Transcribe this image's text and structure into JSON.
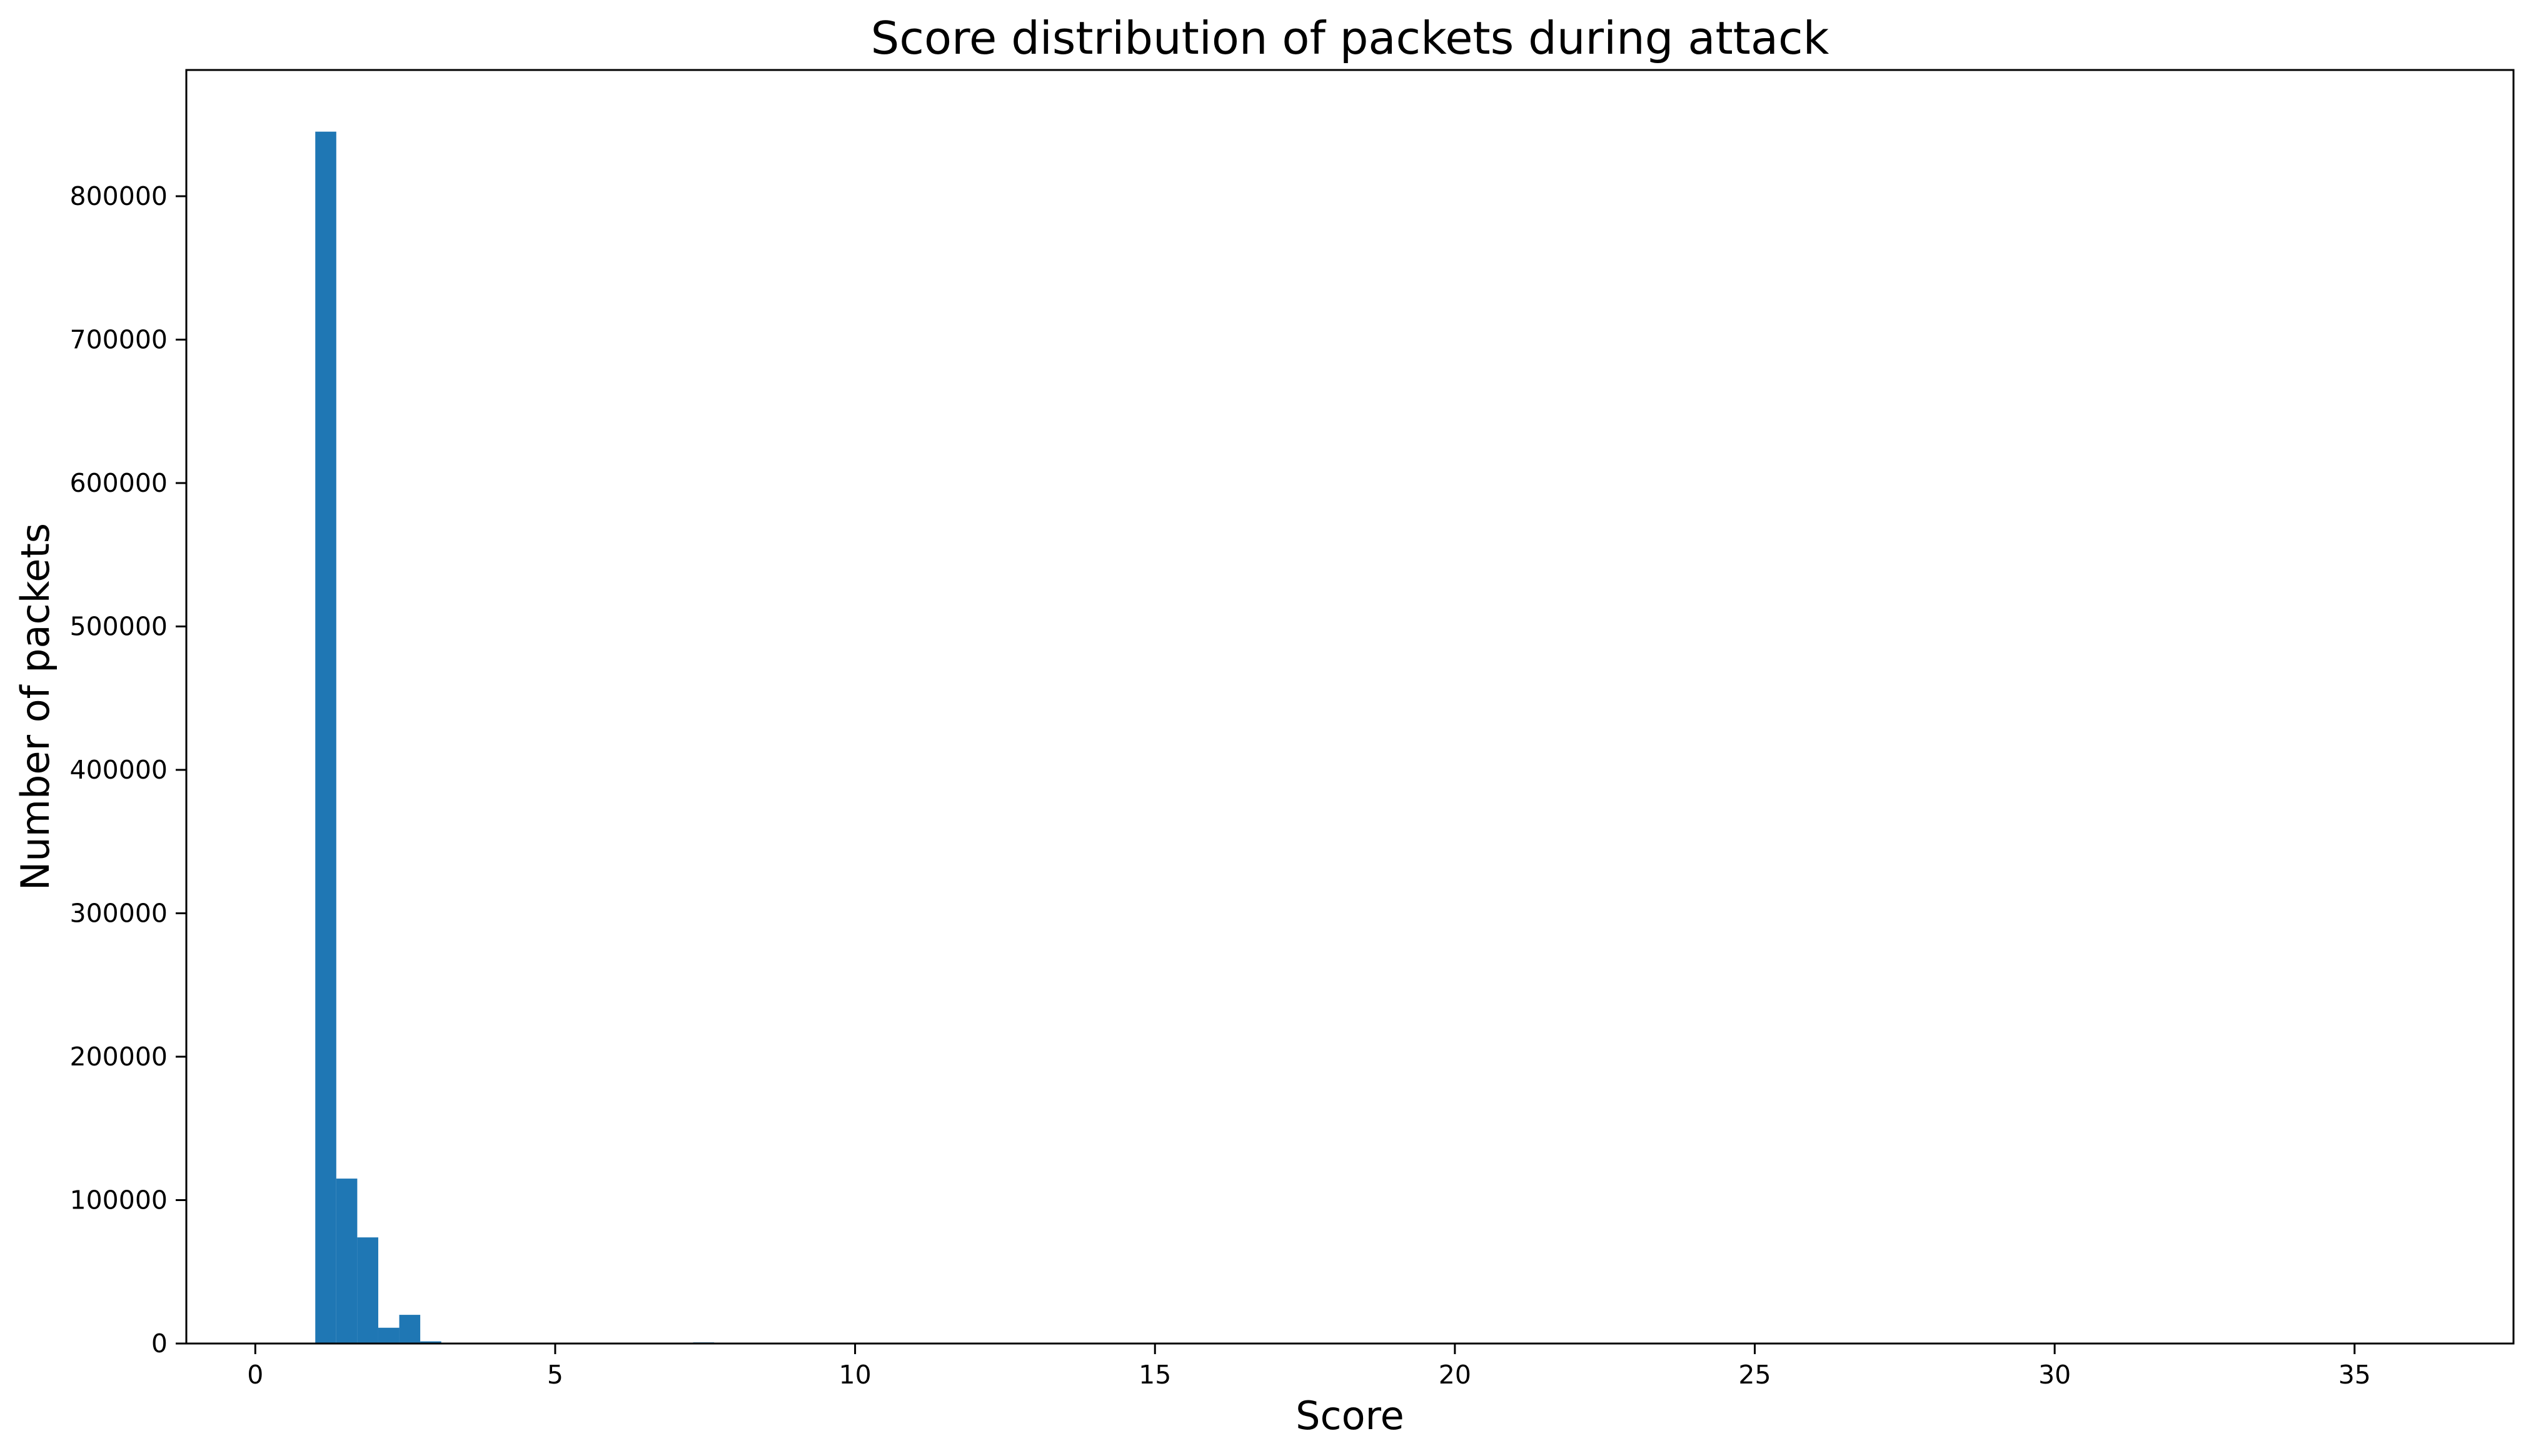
{
  "chart_data": {
    "type": "bar",
    "title": "Score distribution of packets during attack",
    "xlabel": "Score",
    "ylabel": "Number of packets",
    "xlim": [
      -1.15,
      37.65
    ],
    "ylim": [
      0,
      888000
    ],
    "xticks": [
      0,
      5,
      10,
      15,
      20,
      25,
      30,
      35
    ],
    "yticks": [
      0,
      100000,
      200000,
      300000,
      400000,
      500000,
      600000,
      700000,
      800000
    ],
    "grid": false,
    "bar_color": "#1f77b4",
    "bin_width": 0.35,
    "bins": [
      {
        "x": 1.0,
        "value": 845000
      },
      {
        "x": 1.35,
        "value": 115000
      },
      {
        "x": 1.7,
        "value": 74000
      },
      {
        "x": 2.05,
        "value": 11000
      },
      {
        "x": 2.4,
        "value": 20000
      },
      {
        "x": 2.75,
        "value": 1500
      },
      {
        "x": 7.3,
        "value": 800
      }
    ]
  }
}
